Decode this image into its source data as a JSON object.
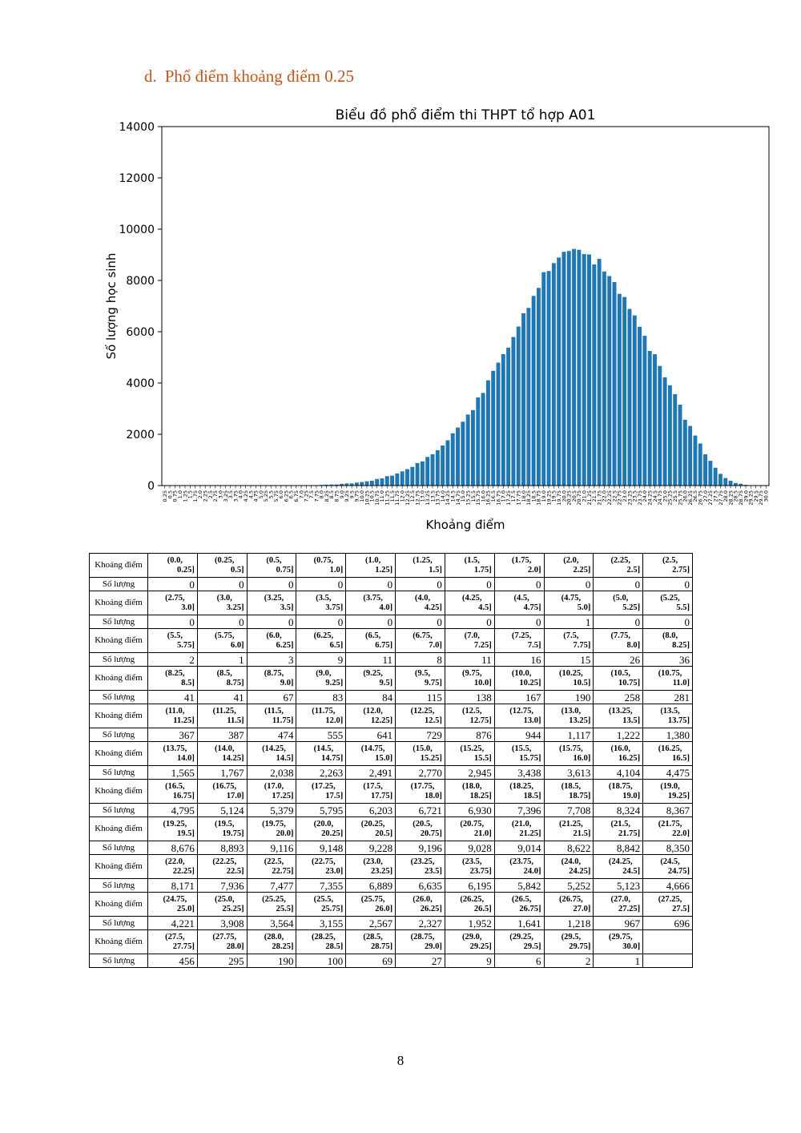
{
  "heading": {
    "number": "d.",
    "text": "Phổ điểm khoảng điểm 0.25"
  },
  "chart_data": {
    "type": "bar",
    "title": "Biểu đồ phổ điểm thi THPT tổ hợp A01",
    "xlabel": "Khoảng điểm",
    "ylabel": "Số lượng học sinh",
    "ylim": [
      0,
      14000
    ],
    "yticks": [
      0,
      2000,
      4000,
      6000,
      8000,
      10000,
      12000,
      14000
    ],
    "color": "#1F77B4",
    "categories": [
      "0.25",
      "0.5",
      "0.75",
      "1.0",
      "1.25",
      "1.5",
      "1.75",
      "2.0",
      "2.25",
      "2.5",
      "2.75",
      "3.0",
      "3.25",
      "3.5",
      "3.75",
      "4.0",
      "4.25",
      "4.5",
      "4.75",
      "5.0",
      "5.25",
      "5.5",
      "5.75",
      "6.0",
      "6.25",
      "6.5",
      "6.75",
      "7.0",
      "7.25",
      "7.5",
      "7.75",
      "8.0",
      "8.25",
      "8.5",
      "8.75",
      "9.0",
      "9.25",
      "9.5",
      "9.75",
      "10.0",
      "10.25",
      "10.5",
      "10.75",
      "11.0",
      "11.25",
      "11.5",
      "11.75",
      "12.0",
      "12.25",
      "12.5",
      "12.75",
      "13.0",
      "13.25",
      "13.5",
      "13.75",
      "14.0",
      "14.25",
      "14.5",
      "14.75",
      "15.0",
      "15.25",
      "15.5",
      "15.75",
      "16.0",
      "16.25",
      "16.5",
      "16.75",
      "17.0",
      "17.25",
      "17.5",
      "17.75",
      "18.0",
      "18.25",
      "18.5",
      "18.75",
      "19.0",
      "19.25",
      "19.5",
      "19.75",
      "20.0",
      "20.25",
      "20.5",
      "20.75",
      "21.0",
      "21.25",
      "21.5",
      "21.75",
      "22.0",
      "22.25",
      "22.5",
      "22.75",
      "23.0",
      "23.25",
      "23.5",
      "23.75",
      "24.0",
      "24.25",
      "24.5",
      "24.75",
      "25.0",
      "25.25",
      "25.5",
      "25.75",
      "26.0",
      "26.25",
      "26.5",
      "26.75",
      "27.0",
      "27.25",
      "27.5",
      "27.75",
      "28.0",
      "28.25",
      "28.5",
      "28.75",
      "29.0",
      "29.25",
      "29.5",
      "29.75",
      "30.0"
    ],
    "values": [
      0,
      0,
      0,
      0,
      0,
      0,
      0,
      0,
      0,
      0,
      0,
      0,
      0,
      0,
      0,
      0,
      0,
      0,
      0,
      1,
      0,
      0,
      2,
      1,
      3,
      9,
      11,
      8,
      11,
      16,
      15,
      26,
      36,
      41,
      41,
      67,
      83,
      84,
      115,
      138,
      167,
      190,
      258,
      281,
      367,
      387,
      474,
      555,
      641,
      729,
      876,
      944,
      1117,
      1222,
      1380,
      1565,
      1767,
      2038,
      2263,
      2491,
      2770,
      2945,
      3438,
      3613,
      4104,
      4475,
      4795,
      5124,
      5379,
      5795,
      6203,
      6721,
      6930,
      7396,
      7708,
      8324,
      8367,
      8676,
      8893,
      9116,
      9148,
      9228,
      9196,
      9028,
      9014,
      8622,
      8842,
      8350,
      8171,
      7936,
      7477,
      7355,
      6889,
      6635,
      6195,
      5842,
      5252,
      5123,
      4666,
      4221,
      3908,
      3564,
      3155,
      2567,
      2327,
      1952,
      1641,
      1218,
      967,
      696,
      456,
      295,
      190,
      100,
      69,
      27,
      9,
      6,
      2,
      1
    ]
  },
  "table": {
    "label_range": "Khoảng điểm",
    "label_count": "Số lượng",
    "rows": [
      {
        "ranges": [
          [
            "(0.0,",
            "0.25]"
          ],
          [
            "(0.25,",
            "0.5]"
          ],
          [
            "(0.5,",
            "0.75]"
          ],
          [
            "(0.75,",
            "1.0]"
          ],
          [
            "(1.0,",
            "1.25]"
          ],
          [
            "(1.25,",
            "1.5]"
          ],
          [
            "(1.5,",
            "1.75]"
          ],
          [
            "(1.75,",
            "2.0]"
          ],
          [
            "(2.0,",
            "2.25]"
          ],
          [
            "(2.25,",
            "2.5]"
          ],
          [
            "(2.5,",
            "2.75]"
          ]
        ],
        "counts": [
          "0",
          "0",
          "0",
          "0",
          "0",
          "0",
          "0",
          "0",
          "0",
          "0",
          "0"
        ]
      },
      {
        "ranges": [
          [
            "(2.75,",
            "3.0]"
          ],
          [
            "(3.0,",
            "3.25]"
          ],
          [
            "(3.25,",
            "3.5]"
          ],
          [
            "(3.5,",
            "3.75]"
          ],
          [
            "(3.75,",
            "4.0]"
          ],
          [
            "(4.0,",
            "4.25]"
          ],
          [
            "(4.25,",
            "4.5]"
          ],
          [
            "(4.5,",
            "4.75]"
          ],
          [
            "(4.75,",
            "5.0]"
          ],
          [
            "(5.0,",
            "5.25]"
          ],
          [
            "(5.25,",
            "5.5]"
          ]
        ],
        "counts": [
          "0",
          "0",
          "0",
          "0",
          "0",
          "0",
          "0",
          "0",
          "1",
          "0",
          "0"
        ]
      },
      {
        "ranges": [
          [
            "(5.5,",
            "5.75]"
          ],
          [
            "(5.75,",
            "6.0]"
          ],
          [
            "(6.0,",
            "6.25]"
          ],
          [
            "(6.25,",
            "6.5]"
          ],
          [
            "(6.5,",
            "6.75]"
          ],
          [
            "(6.75,",
            "7.0]"
          ],
          [
            "(7.0,",
            "7.25]"
          ],
          [
            "(7.25,",
            "7.5]"
          ],
          [
            "(7.5,",
            "7.75]"
          ],
          [
            "(7.75,",
            "8.0]"
          ],
          [
            "(8.0,",
            "8.25]"
          ]
        ],
        "counts": [
          "2",
          "1",
          "3",
          "9",
          "11",
          "8",
          "11",
          "16",
          "15",
          "26",
          "36"
        ]
      },
      {
        "ranges": [
          [
            "(8.25,",
            "8.5]"
          ],
          [
            "(8.5,",
            "8.75]"
          ],
          [
            "(8.75,",
            "9.0]"
          ],
          [
            "(9.0,",
            "9.25]"
          ],
          [
            "(9.25,",
            "9.5]"
          ],
          [
            "(9.5,",
            "9.75]"
          ],
          [
            "(9.75,",
            "10.0]"
          ],
          [
            "(10.0,",
            "10.25]"
          ],
          [
            "(10.25,",
            "10.5]"
          ],
          [
            "(10.5,",
            "10.75]"
          ],
          [
            "(10.75,",
            "11.0]"
          ]
        ],
        "counts": [
          "41",
          "41",
          "67",
          "83",
          "84",
          "115",
          "138",
          "167",
          "190",
          "258",
          "281"
        ]
      },
      {
        "ranges": [
          [
            "(11.0,",
            "11.25]"
          ],
          [
            "(11.25,",
            "11.5]"
          ],
          [
            "(11.5,",
            "11.75]"
          ],
          [
            "(11.75,",
            "12.0]"
          ],
          [
            "(12.0,",
            "12.25]"
          ],
          [
            "(12.25,",
            "12.5]"
          ],
          [
            "(12.5,",
            "12.75]"
          ],
          [
            "(12.75,",
            "13.0]"
          ],
          [
            "(13.0,",
            "13.25]"
          ],
          [
            "(13.25,",
            "13.5]"
          ],
          [
            "(13.5,",
            "13.75]"
          ]
        ],
        "counts": [
          "367",
          "387",
          "474",
          "555",
          "641",
          "729",
          "876",
          "944",
          "1,117",
          "1,222",
          "1,380"
        ]
      },
      {
        "ranges": [
          [
            "(13.75,",
            "14.0]"
          ],
          [
            "(14.0,",
            "14.25]"
          ],
          [
            "(14.25,",
            "14.5]"
          ],
          [
            "(14.5,",
            "14.75]"
          ],
          [
            "(14.75,",
            "15.0]"
          ],
          [
            "(15.0,",
            "15.25]"
          ],
          [
            "(15.25,",
            "15.5]"
          ],
          [
            "(15.5,",
            "15.75]"
          ],
          [
            "(15.75,",
            "16.0]"
          ],
          [
            "(16.0,",
            "16.25]"
          ],
          [
            "(16.25,",
            "16.5]"
          ]
        ],
        "counts": [
          "1,565",
          "1,767",
          "2,038",
          "2,263",
          "2,491",
          "2,770",
          "2,945",
          "3,438",
          "3,613",
          "4,104",
          "4,475"
        ]
      },
      {
        "ranges": [
          [
            "(16.5,",
            "16.75]"
          ],
          [
            "(16.75,",
            "17.0]"
          ],
          [
            "(17.0,",
            "17.25]"
          ],
          [
            "(17.25,",
            "17.5]"
          ],
          [
            "(17.5,",
            "17.75]"
          ],
          [
            "(17.75,",
            "18.0]"
          ],
          [
            "(18.0,",
            "18.25]"
          ],
          [
            "(18.25,",
            "18.5]"
          ],
          [
            "(18.5,",
            "18.75]"
          ],
          [
            "(18.75,",
            "19.0]"
          ],
          [
            "(19.0,",
            "19.25]"
          ]
        ],
        "counts": [
          "4,795",
          "5,124",
          "5,379",
          "5,795",
          "6,203",
          "6,721",
          "6,930",
          "7,396",
          "7,708",
          "8,324",
          "8,367"
        ]
      },
      {
        "ranges": [
          [
            "(19.25,",
            "19.5]"
          ],
          [
            "(19.5,",
            "19.75]"
          ],
          [
            "(19.75,",
            "20.0]"
          ],
          [
            "(20.0,",
            "20.25]"
          ],
          [
            "(20.25,",
            "20.5]"
          ],
          [
            "(20.5,",
            "20.75]"
          ],
          [
            "(20.75,",
            "21.0]"
          ],
          [
            "(21.0,",
            "21.25]"
          ],
          [
            "(21.25,",
            "21.5]"
          ],
          [
            "(21.5,",
            "21.75]"
          ],
          [
            "(21.75,",
            "22.0]"
          ]
        ],
        "counts": [
          "8,676",
          "8,893",
          "9,116",
          "9,148",
          "9,228",
          "9,196",
          "9,028",
          "9,014",
          "8,622",
          "8,842",
          "8,350"
        ]
      },
      {
        "ranges": [
          [
            "(22.0,",
            "22.25]"
          ],
          [
            "(22.25,",
            "22.5]"
          ],
          [
            "(22.5,",
            "22.75]"
          ],
          [
            "(22.75,",
            "23.0]"
          ],
          [
            "(23.0,",
            "23.25]"
          ],
          [
            "(23.25,",
            "23.5]"
          ],
          [
            "(23.5,",
            "23.75]"
          ],
          [
            "(23.75,",
            "24.0]"
          ],
          [
            "(24.0,",
            "24.25]"
          ],
          [
            "(24.25,",
            "24.5]"
          ],
          [
            "(24.5,",
            "24.75]"
          ]
        ],
        "counts": [
          "8,171",
          "7,936",
          "7,477",
          "7,355",
          "6,889",
          "6,635",
          "6,195",
          "5,842",
          "5,252",
          "5,123",
          "4,666"
        ]
      },
      {
        "ranges": [
          [
            "(24.75,",
            "25.0]"
          ],
          [
            "(25.0,",
            "25.25]"
          ],
          [
            "(25.25,",
            "25.5]"
          ],
          [
            "(25.5,",
            "25.75]"
          ],
          [
            "(25.75,",
            "26.0]"
          ],
          [
            "(26.0,",
            "26.25]"
          ],
          [
            "(26.25,",
            "26.5]"
          ],
          [
            "(26.5,",
            "26.75]"
          ],
          [
            "(26.75,",
            "27.0]"
          ],
          [
            "(27.0,",
            "27.25]"
          ],
          [
            "(27.25,",
            "27.5]"
          ]
        ],
        "counts": [
          "4,221",
          "3,908",
          "3,564",
          "3,155",
          "2,567",
          "2,327",
          "1,952",
          "1,641",
          "1,218",
          "967",
          "696"
        ]
      },
      {
        "ranges": [
          [
            "(27.5,",
            "27.75]"
          ],
          [
            "(27.75,",
            "28.0]"
          ],
          [
            "(28.0,",
            "28.25]"
          ],
          [
            "(28.25,",
            "28.5]"
          ],
          [
            "(28.5,",
            "28.75]"
          ],
          [
            "(28.75,",
            "29.0]"
          ],
          [
            "(29.0,",
            "29.25]"
          ],
          [
            "(29.25,",
            "29.5]"
          ],
          [
            "(29.5,",
            "29.75]"
          ],
          [
            "(29.75,",
            "30.0]"
          ],
          [
            "",
            ""
          ]
        ],
        "counts": [
          "456",
          "295",
          "190",
          "100",
          "69",
          "27",
          "9",
          "6",
          "2",
          "1",
          ""
        ]
      }
    ]
  },
  "page_number": "8"
}
